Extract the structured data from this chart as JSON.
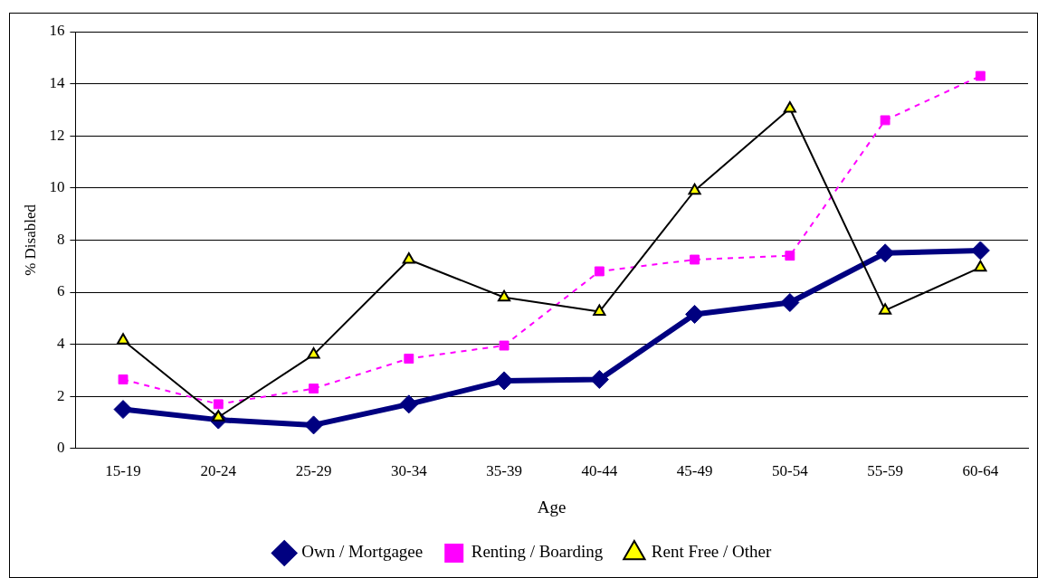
{
  "chart_data": {
    "type": "line",
    "xlabel": "Age",
    "ylabel": "% Disabled",
    "categories": [
      "15-19",
      "20-24",
      "25-29",
      "30-34",
      "35-39",
      "40-44",
      "45-49",
      "50-54",
      "55-59",
      "60-64"
    ],
    "ylim": [
      0,
      16
    ],
    "yticks": [
      0,
      2,
      4,
      6,
      8,
      10,
      12,
      14,
      16
    ],
    "grid": "y",
    "legend": "bottom",
    "series": [
      {
        "name": "Own / Mortgagee",
        "color": "#000080",
        "marker": "diamond",
        "line_style": "solid",
        "values": [
          1.5,
          1.1,
          0.9,
          1.7,
          2.6,
          2.65,
          5.15,
          5.6,
          7.5,
          7.6
        ]
      },
      {
        "name": "Renting / Boarding",
        "color": "#ff00ff",
        "marker": "square",
        "line_style": "dashed",
        "values": [
          2.65,
          1.7,
          2.3,
          3.45,
          3.95,
          6.8,
          7.25,
          7.4,
          12.6,
          14.3
        ]
      },
      {
        "name": "Rent Free / Other",
        "color": "#000000",
        "colors": [
          "#ffff00",
          "#ffff00",
          "#ffff00",
          "#ffff00",
          "#ffff00",
          "#ffff00",
          "#ffff00",
          "#ffff00",
          "#ffff00",
          "#ffff00"
        ],
        "marker": "triangle",
        "line_style": "solid",
        "values": [
          4.15,
          1.2,
          3.6,
          7.25,
          5.8,
          5.25,
          9.9,
          13.05,
          5.3,
          6.95
        ]
      }
    ]
  }
}
